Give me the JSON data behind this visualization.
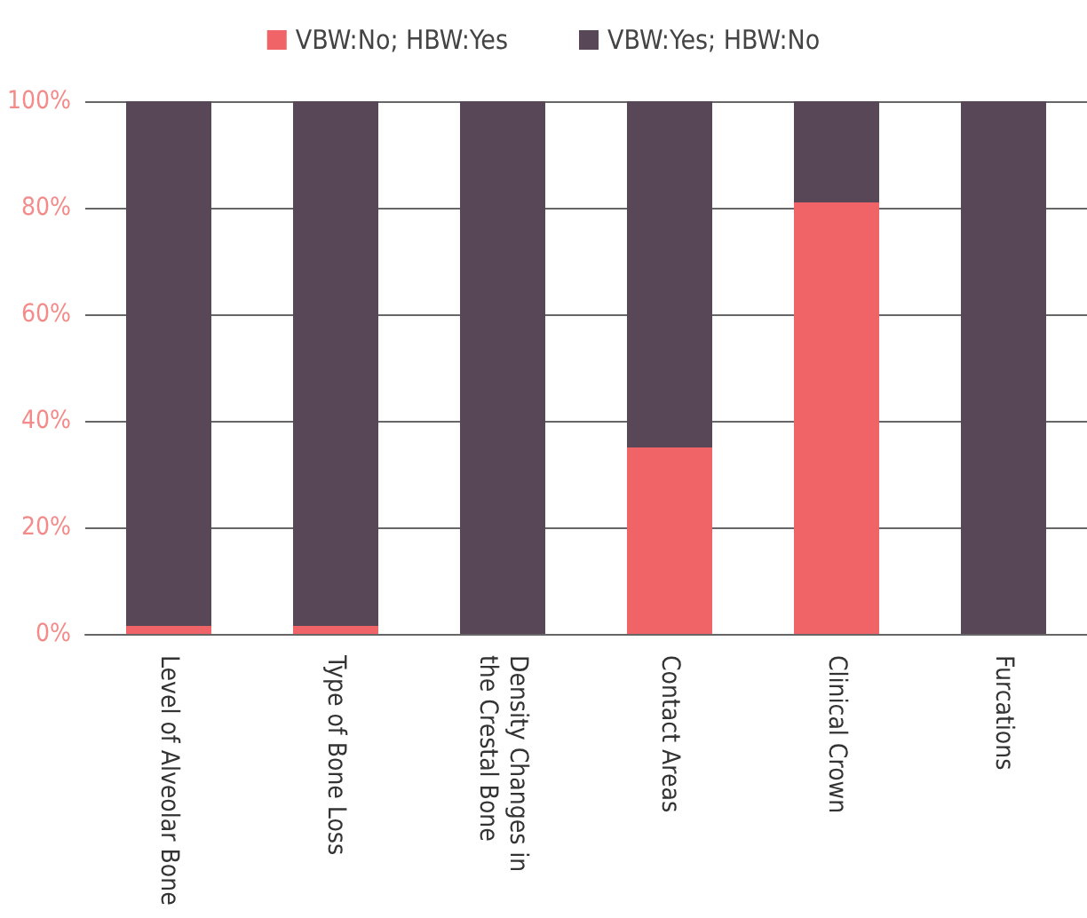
{
  "chart_data": {
    "type": "bar",
    "stacked": true,
    "categories": [
      "Level of Alveolar Bone",
      "Type of Bone Loss",
      "Density Changes in\nthe Crestal Bone",
      "Contact Areas",
      "Clinical Crown",
      "Furcations"
    ],
    "series": [
      {
        "name": "VBW:No; HBW:Yes",
        "color": "#f06467",
        "values": [
          1.5,
          1.5,
          0,
          35,
          81,
          0
        ]
      },
      {
        "name": "VBW:Yes; HBW:No",
        "color": "#584757",
        "values": [
          98.5,
          98.5,
          100,
          65,
          19,
          100
        ]
      }
    ],
    "ylim": [
      0,
      100
    ],
    "yticks": [
      {
        "value": 0,
        "label": "0%"
      },
      {
        "value": 20,
        "label": "20%"
      },
      {
        "value": 40,
        "label": "40%"
      },
      {
        "value": 60,
        "label": "60%"
      },
      {
        "value": 80,
        "label": "80%"
      },
      {
        "value": 100,
        "label": "100%"
      }
    ],
    "grid": "y",
    "legend": "top"
  }
}
